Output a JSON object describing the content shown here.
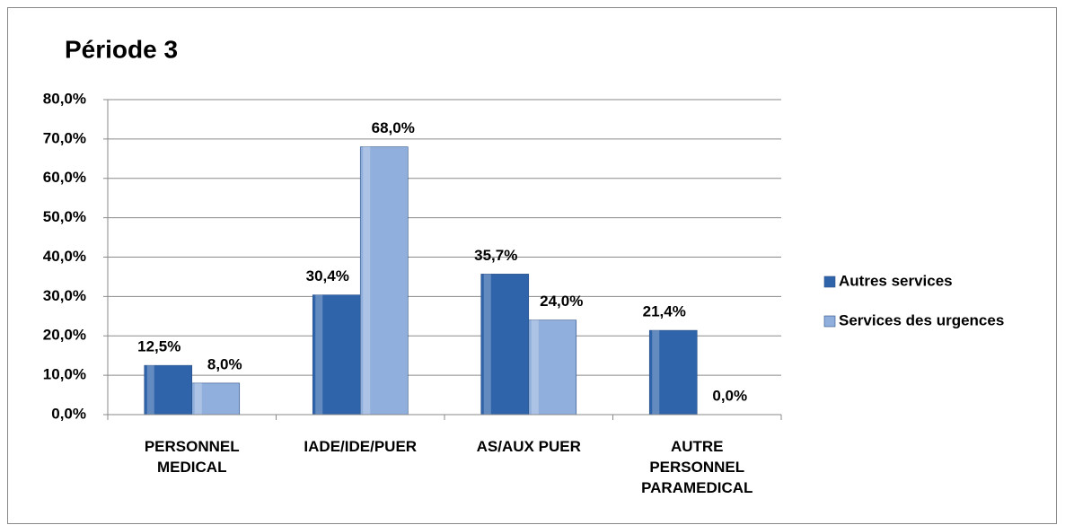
{
  "chart_data": {
    "type": "bar",
    "title": "Période 3",
    "categories": [
      "PERSONNEL MEDICAL",
      "IADE/IDE/PUER",
      "AS/AUX PUER",
      "AUTRE PERSONNEL PARAMEDICAL"
    ],
    "series": [
      {
        "name": "Autres services",
        "color": "#2f64aa",
        "values": [
          12.5,
          30.4,
          35.7,
          21.4
        ],
        "value_labels": [
          "12,5%",
          "30,4%",
          "35,7%",
          "21,4%"
        ]
      },
      {
        "name": "Services des urgences",
        "color": "#90afdc",
        "values": [
          8.0,
          68.0,
          24.0,
          0.0
        ],
        "value_labels": [
          "8,0%",
          "68,0%",
          "24,0%",
          "0,0%"
        ]
      }
    ],
    "ylim": [
      0,
      80
    ],
    "yticks": [
      {
        "value": 0,
        "label": "0,0%"
      },
      {
        "value": 10,
        "label": "10,0%"
      },
      {
        "value": 20,
        "label": "20,0%"
      },
      {
        "value": 30,
        "label": "30,0%"
      },
      {
        "value": 40,
        "label": "40,0%"
      },
      {
        "value": 50,
        "label": "50,0%"
      },
      {
        "value": 60,
        "label": "60,0%"
      },
      {
        "value": 70,
        "label": "70,0%"
      },
      {
        "value": 80,
        "label": "80,0%"
      }
    ],
    "grid": true,
    "legend": "right"
  }
}
